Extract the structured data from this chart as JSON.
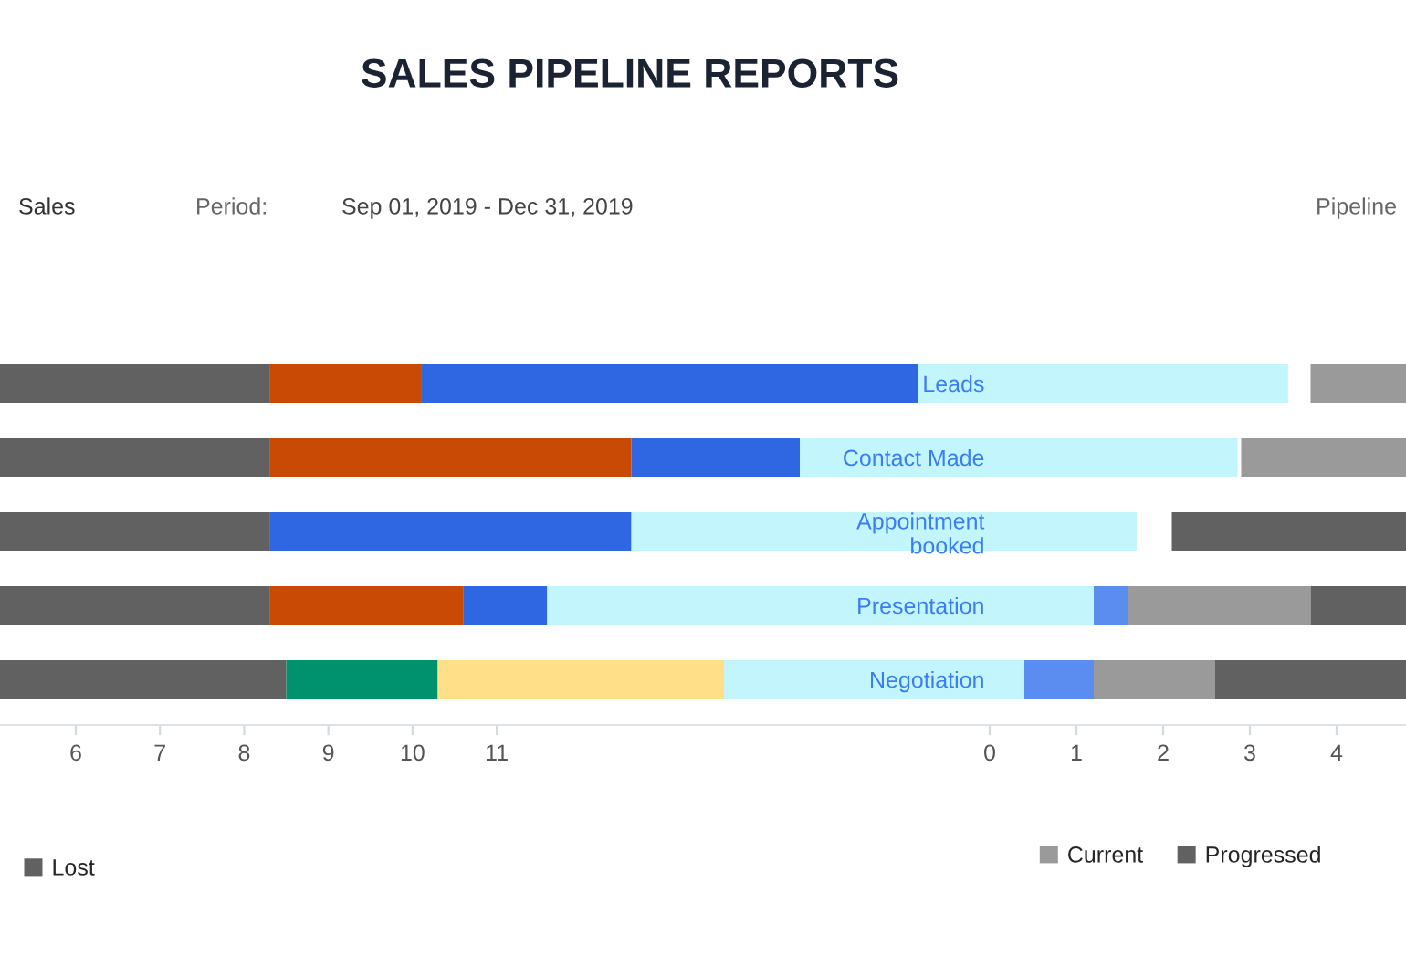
{
  "chart_data": [
    {
      "type": "bar",
      "title": "SALES PIPELINE REPORTS",
      "annotations": [
        "Sales",
        "Period:",
        "Sep 01, 2019 - Dec 31, 2019",
        "Pipeline"
      ],
      "orientation": "horizontal",
      "stacked": true,
      "categories": [
        null,
        null,
        null,
        null,
        null
      ],
      "series": [
        {
          "name": "Lost",
          "color": "#616161",
          "values": [
            8.3,
            8.3,
            8.3,
            8.3,
            8.5
          ]
        },
        {
          "color": "#c94a05",
          "base": [
            8.3,
            8.3,
            null,
            8.3,
            null
          ],
          "values": [
            1.8,
            4.3,
            null,
            2.3,
            null
          ]
        },
        {
          "color": "#00916e",
          "base": [
            null,
            null,
            null,
            null,
            8.5
          ],
          "values": [
            null,
            null,
            null,
            null,
            1.8
          ]
        },
        {
          "color": "#2e67e1",
          "base": [
            10.1,
            12.6,
            8.3,
            10.6,
            null
          ],
          "values": [
            5.9,
            2.0,
            4.3,
            1.0,
            null
          ]
        },
        {
          "color": "#ffdf88",
          "base": [
            null,
            null,
            null,
            null,
            10.3
          ],
          "values": [
            null,
            null,
            null,
            null,
            3.4
          ]
        },
        {
          "color": "#c3f6fc",
          "base": [
            16.0,
            14.6,
            12.6,
            11.6,
            13.7
          ],
          "values": [
            4.4,
            5.2,
            6.0,
            6.5,
            3.6
          ]
        }
      ],
      "xlim": [
        5.1,
        21.8
      ],
      "xticks": [
        6,
        7,
        8,
        9,
        10,
        11
      ],
      "tick_labels": "x",
      "legend": "bottom left"
    },
    {
      "type": "bar",
      "orientation": "horizontal",
      "stacked": true,
      "categories": [
        "Leads",
        "Contact Made",
        "Appointment booked",
        "Presentation",
        "Negotiation"
      ],
      "series": [
        {
          "color": "#5b8df0",
          "base": [
            null,
            null,
            null,
            1.2,
            0.4
          ],
          "values": [
            null,
            null,
            null,
            0.4,
            0.8
          ]
        },
        {
          "name": "Current",
          "color": "#9a9a9a",
          "base": [
            3.7,
            2.9,
            null,
            1.6,
            1.2
          ],
          "values": [
            1.1,
            1.9,
            null,
            2.1,
            1.4
          ]
        },
        {
          "name": "Progressed",
          "color": "#616161",
          "base": [
            null,
            null,
            2.1,
            3.7,
            2.6
          ],
          "values": [
            null,
            null,
            2.7,
            1.1,
            2.2
          ]
        }
      ],
      "xlim": [
        0,
        4.8
      ],
      "xticks": [
        0,
        1,
        2,
        3,
        4
      ],
      "legend": "bottom right"
    }
  ]
}
